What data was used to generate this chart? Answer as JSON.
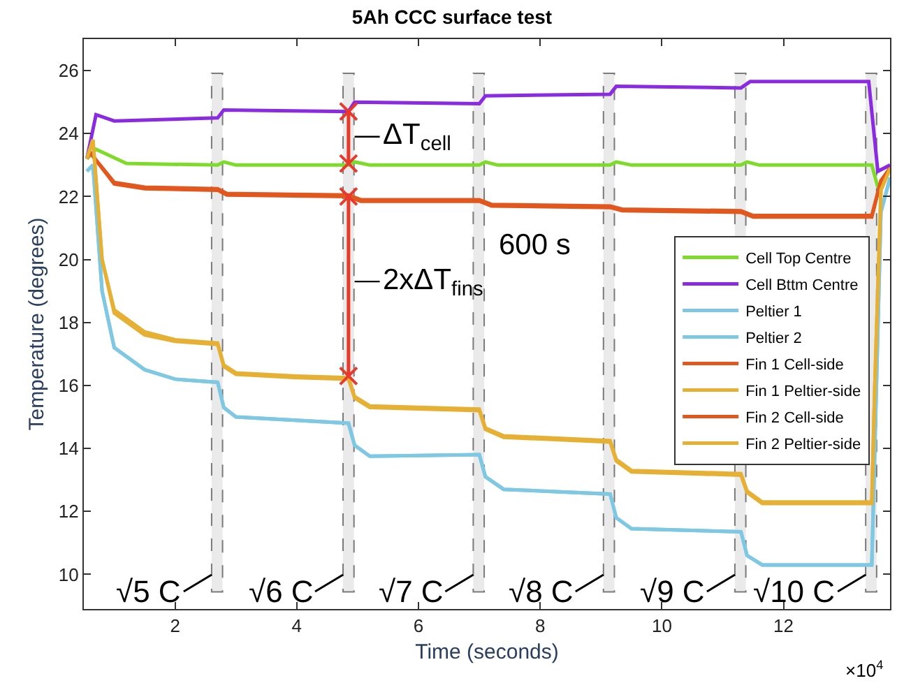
{
  "chart_data": {
    "type": "line",
    "title": "5Ah CCC surface test",
    "xlabel": "Time (seconds)",
    "ylabel": "Temperature (degrees)",
    "xlim": [
      0.5,
      13.75
    ],
    "xticks": [
      2,
      4,
      6,
      8,
      10,
      12
    ],
    "ylim": [
      8.9,
      27
    ],
    "yticks": [
      10,
      12,
      14,
      16,
      18,
      20,
      22,
      24,
      26
    ],
    "grid": false,
    "legend": "right",
    "line_style": "solid",
    "marker": "none",
    "series": [
      {
        "name": "Cell Top Centre",
        "color": "#7fdb2a",
        "x": [
          0.55,
          0.7,
          1.2,
          2.7,
          2.8,
          3.0,
          4.85,
          4.95,
          5.2,
          7.0,
          7.1,
          7.3,
          9.15,
          9.25,
          9.5,
          11.3,
          11.4,
          11.6,
          13.45,
          13.55,
          13.75
        ],
        "values": [
          23.2,
          23.5,
          23.05,
          23.0,
          23.1,
          23.0,
          23.0,
          23.1,
          23.0,
          23.0,
          23.1,
          23.0,
          23.0,
          23.1,
          23.0,
          23.0,
          23.1,
          23.0,
          23.0,
          22.3,
          22.9
        ]
      },
      {
        "name": "Cell Bttm Centre",
        "color": "#8a2be2",
        "x": [
          0.55,
          0.7,
          1.0,
          2.7,
          2.8,
          4.85,
          4.95,
          7.0,
          7.1,
          9.15,
          9.25,
          11.3,
          11.45,
          13.4,
          13.55,
          13.75
        ],
        "values": [
          23.2,
          24.6,
          24.4,
          24.5,
          24.75,
          24.7,
          25.0,
          24.95,
          25.2,
          25.25,
          25.5,
          25.45,
          25.65,
          25.65,
          22.8,
          23.0
        ]
      },
      {
        "name": "Peltier 1",
        "color": "#7ec8e3",
        "x": [
          0.55,
          0.65,
          0.8,
          1.0,
          1.5,
          2.0,
          2.7,
          2.8,
          3.0,
          4.85,
          4.95,
          5.2,
          7.0,
          7.1,
          7.4,
          9.15,
          9.25,
          9.5,
          11.3,
          11.4,
          11.65,
          13.45,
          13.5,
          13.6,
          13.75
        ],
        "values": [
          22.8,
          23.0,
          19.0,
          17.2,
          16.5,
          16.2,
          16.1,
          15.3,
          15.0,
          14.8,
          14.1,
          13.75,
          13.8,
          13.1,
          12.7,
          12.55,
          11.8,
          11.45,
          11.35,
          10.6,
          10.3,
          10.3,
          14.0,
          21.5,
          22.6
        ]
      },
      {
        "name": "Peltier 2",
        "color": "#7ec8e3",
        "x": [
          0.55,
          0.65,
          0.8,
          1.0,
          1.5,
          2.0,
          2.7,
          2.8,
          3.0,
          4.85,
          4.95,
          5.2,
          7.0,
          7.1,
          7.4,
          9.15,
          9.25,
          9.5,
          11.3,
          11.4,
          11.65,
          13.45,
          13.5,
          13.6,
          13.75
        ],
        "values": [
          22.8,
          23.0,
          19.0,
          17.2,
          16.5,
          16.2,
          16.1,
          15.3,
          15.0,
          14.8,
          14.1,
          13.75,
          13.8,
          13.1,
          12.7,
          12.55,
          11.8,
          11.45,
          11.35,
          10.6,
          10.3,
          10.3,
          14.0,
          21.5,
          22.6
        ]
      },
      {
        "name": "Fin 1 Cell-side",
        "color": "#e2571e",
        "x": [
          0.55,
          0.6,
          1.0,
          1.5,
          2.7,
          2.85,
          4.85,
          5.05,
          7.0,
          7.2,
          9.15,
          9.35,
          11.3,
          11.5,
          13.45,
          13.6,
          13.75
        ],
        "values": [
          23.2,
          23.4,
          22.4,
          22.25,
          22.2,
          22.05,
          22.0,
          21.85,
          21.85,
          21.7,
          21.65,
          21.55,
          21.5,
          21.35,
          21.35,
          22.5,
          22.9
        ]
      },
      {
        "name": "Fin 1 Peltier-side",
        "color": "#e6b035",
        "x": [
          0.55,
          0.65,
          0.8,
          1.0,
          1.5,
          2.0,
          2.7,
          2.8,
          3.0,
          4.0,
          4.85,
          4.95,
          5.2,
          7.0,
          7.1,
          7.4,
          9.15,
          9.25,
          9.5,
          11.3,
          11.4,
          11.65,
          13.45,
          13.5,
          13.6,
          13.75
        ],
        "values": [
          23.2,
          23.8,
          20.0,
          18.3,
          17.6,
          17.4,
          17.3,
          16.6,
          16.35,
          16.25,
          16.2,
          15.6,
          15.3,
          15.2,
          14.6,
          14.35,
          14.2,
          13.6,
          13.25,
          13.15,
          12.6,
          12.25,
          12.25,
          16.0,
          22.2,
          22.9
        ]
      },
      {
        "name": "Fin 2 Cell-side",
        "color": "#e2571e",
        "x": [
          0.55,
          0.6,
          1.0,
          1.5,
          2.7,
          2.85,
          4.85,
          5.05,
          7.0,
          7.2,
          9.15,
          9.35,
          11.3,
          11.5,
          13.45,
          13.6,
          13.75
        ],
        "values": [
          23.2,
          23.4,
          22.45,
          22.3,
          22.25,
          22.1,
          22.05,
          21.9,
          21.9,
          21.75,
          21.7,
          21.6,
          21.55,
          21.4,
          21.4,
          22.5,
          22.9
        ]
      },
      {
        "name": "Fin 2 Peltier-side",
        "color": "#e6b035",
        "x": [
          0.55,
          0.65,
          0.8,
          1.0,
          1.5,
          2.0,
          2.7,
          2.8,
          3.0,
          4.0,
          4.85,
          4.95,
          5.2,
          7.0,
          7.1,
          7.4,
          9.15,
          9.25,
          9.5,
          11.3,
          11.4,
          11.65,
          13.45,
          13.5,
          13.6,
          13.75
        ],
        "values": [
          23.2,
          23.8,
          20.0,
          18.4,
          17.7,
          17.45,
          17.35,
          16.65,
          16.4,
          16.3,
          16.25,
          15.65,
          15.35,
          15.25,
          14.65,
          14.4,
          14.25,
          13.65,
          13.3,
          13.2,
          12.65,
          12.3,
          12.3,
          16.0,
          22.2,
          22.9
        ]
      },
      {
        "color": "#e8392a",
        "marker": "cross",
        "x": [
          4.85,
          4.85
        ],
        "values": [
          23.05,
          24.7
        ]
      },
      {
        "color": "#e8392a",
        "marker": "cross",
        "x": [
          4.85,
          4.85
        ],
        "values": [
          16.3,
          22.0
        ]
      }
    ],
    "bands": [
      {
        "axis": "x",
        "from": 2.6,
        "to": 2.78,
        "label": "√5 C",
        "color": "#dddddd"
      },
      {
        "axis": "x",
        "from": 4.76,
        "to": 4.94,
        "label": "√6 C",
        "color": "#dddddd"
      },
      {
        "axis": "x",
        "from": 6.9,
        "to": 7.08,
        "label": "√7 C",
        "color": "#dddddd"
      },
      {
        "axis": "x",
        "from": 9.04,
        "to": 9.22,
        "label": "√8 C",
        "color": "#dddddd"
      },
      {
        "axis": "x",
        "from": 11.2,
        "to": 11.38,
        "label": "√9 C",
        "color": "#dddddd"
      },
      {
        "axis": "x",
        "from": 13.35,
        "to": 13.53,
        "label": "√10 C",
        "color": "#dddddd"
      }
    ],
    "annotations": [
      {
        "text": "ΔT$_{cell}$",
        "x": 4.95,
        "y": 23.9
      },
      {
        "text": "2xΔT$_{fins}$",
        "x": 4.95,
        "y": 19.3
      },
      "600 s",
      "×10$^{4}$"
    ]
  }
}
